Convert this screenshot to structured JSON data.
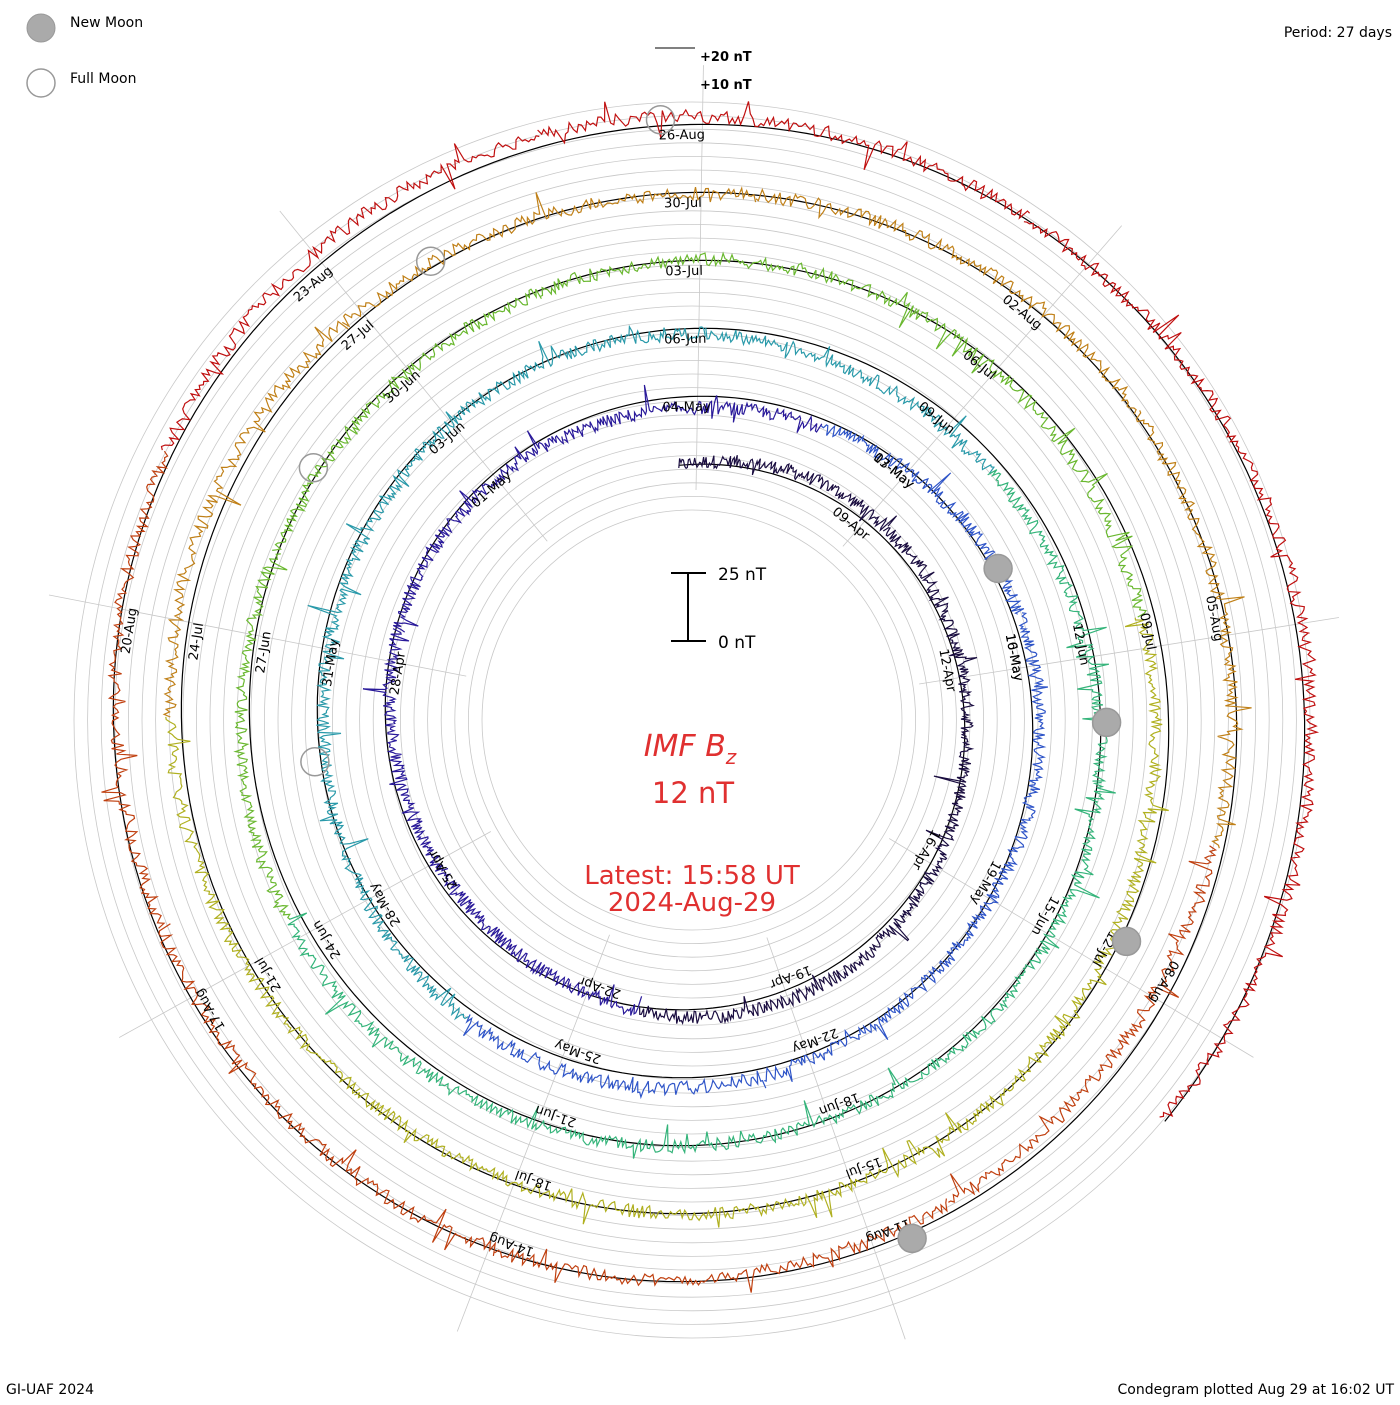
{
  "chart_data": {
    "type": "line",
    "variant": "polar-condegram",
    "title": "IMF B",
    "title_subscript": "z",
    "current_value": "12 nT",
    "latest_time": "Latest: 15:58 UT",
    "latest_date": "2024-Aug-29",
    "period": "Period: 27 days",
    "footer_left": "GI-UAF 2024",
    "footer_right": "Condegram plotted Aug 29 at 16:02 UT",
    "scale_bar": {
      "top_label": "25 nT",
      "bottom_label": "0 nT"
    },
    "reference_levels": [
      {
        "label": "+20 nT",
        "value": 20
      },
      {
        "label": "+10 nT",
        "value": 10
      }
    ],
    "legend": [
      {
        "label": "New Moon",
        "kind": "new"
      },
      {
        "label": "Full Moon",
        "kind": "full"
      }
    ],
    "units": "nT",
    "start_date": "2024-04-06",
    "end_date": "2024-08-29",
    "rotations": [
      {
        "color": "#1a0d40",
        "dates": [
          "09-Apr",
          "12-Apr",
          "16-Apr",
          "19-Apr",
          "22-Apr",
          "25-Apr",
          "28-Apr",
          "01-May",
          "04-May",
          "07-May",
          "10-May"
        ]
      },
      {
        "color": "#2a1a9a",
        "dates": [
          "13-May",
          "16-May",
          "19-May",
          "22-May",
          "25-May",
          "28-May",
          "31-May",
          "03-Jun",
          "06-Jun"
        ]
      },
      {
        "color": "#2a9aaa",
        "dates": [
          "09-Jun",
          "12-Jun",
          "15-Jun",
          "18-Jun",
          "21-Jun",
          "24-Jun",
          "27-Jun",
          "30-Jun",
          "03-Jul"
        ]
      },
      {
        "color": "#6ab830",
        "dates": [
          "06-Jul",
          "09-Jul",
          "12-Jul",
          "15-Jul",
          "18-Jul",
          "21-Jul",
          "24-Jul",
          "27-Jul",
          "30-Jul"
        ]
      },
      {
        "color": "#b89a18",
        "dates": [
          "02-Aug",
          "05-Aug",
          "08-Aug",
          "11-Aug",
          "14-Aug",
          "17-Aug",
          "20-Aug",
          "23-Aug",
          "26-Aug"
        ]
      }
    ],
    "moon_events": [
      {
        "kind": "new",
        "date": "2024-05-08"
      },
      {
        "kind": "full",
        "date": "2024-05-23"
      },
      {
        "kind": "new",
        "date": "2024-06-06"
      },
      {
        "kind": "full",
        "date": "2024-06-22"
      },
      {
        "kind": "new",
        "date": "2024-07-05"
      },
      {
        "kind": "full",
        "date": "2024-07-21"
      },
      {
        "kind": "new",
        "date": "2024-08-04"
      },
      {
        "kind": "full",
        "date": "2024-08-19"
      }
    ]
  }
}
